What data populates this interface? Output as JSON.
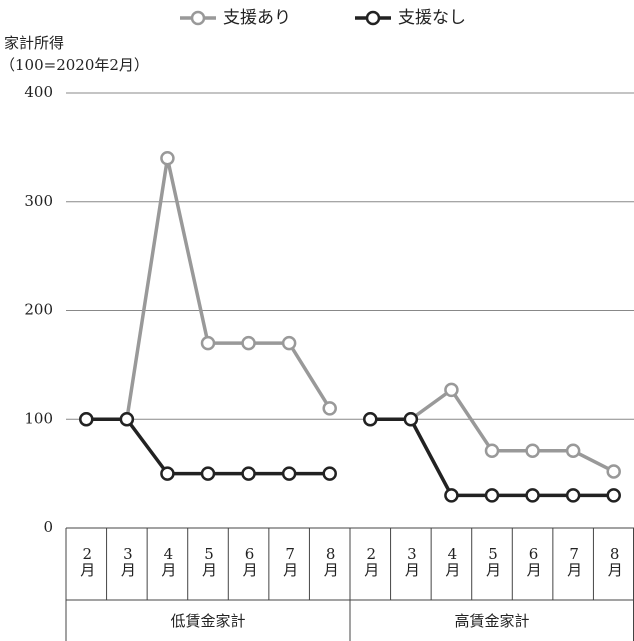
{
  "chart_data": {
    "type": "line",
    "ylabel": [
      "家計所得",
      "（100=2020年2月）"
    ],
    "groups": [
      {
        "name": "低賃金家計",
        "categories": [
          "2月",
          "3月",
          "4月",
          "5月",
          "6月",
          "7月",
          "8月"
        ]
      },
      {
        "name": "高賃金家計",
        "categories": [
          "2月",
          "3月",
          "4月",
          "5月",
          "6月",
          "7月",
          "8月"
        ]
      }
    ],
    "series": [
      {
        "name": "支援あり",
        "color": "#999999",
        "values": [
          100,
          100,
          340,
          170,
          170,
          170,
          110,
          100,
          100,
          127,
          71,
          71,
          71,
          52
        ]
      },
      {
        "name": "支援なし",
        "color": "#222222",
        "values": [
          100,
          100,
          50,
          50,
          50,
          50,
          50,
          100,
          100,
          30,
          30,
          30,
          30,
          30
        ]
      }
    ],
    "ylim": [
      0,
      400
    ],
    "yticks": [
      0,
      100,
      200,
      300,
      400
    ],
    "grid": true,
    "legend": "top"
  }
}
